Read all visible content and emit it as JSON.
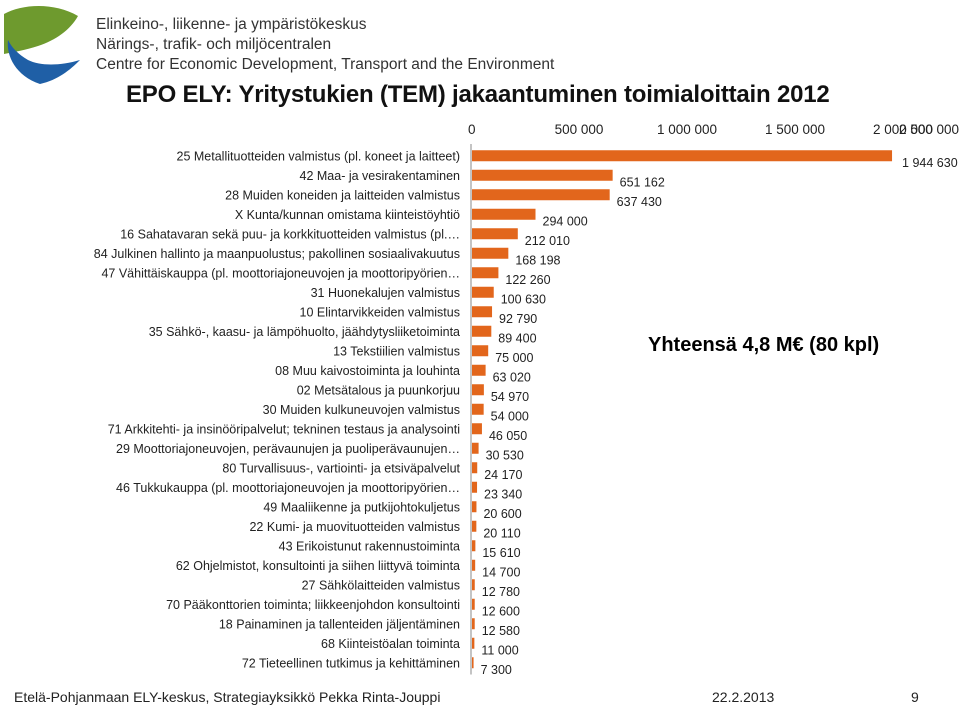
{
  "header": {
    "org_lines": [
      "Elinkeino-, liikenne- ja ympäristökeskus",
      "Närings-, trafik- och miljöcentralen",
      "Centre for Economic Development, Transport and the Environment"
    ],
    "title": "EPO ELY: Yritystukien (TEM) jakaantuminen toimialoittain 2012"
  },
  "colors": {
    "bar": "#E2661C",
    "logo_green": "#6E9A2E",
    "logo_blue": "#1F5FA6",
    "axis": "#888888"
  },
  "chart_data": {
    "type": "bar",
    "orientation": "horizontal",
    "title": "EPO ELY: Yritystukien (TEM) jakaantuminen toimialoittain 2012",
    "xlim": [
      0,
      2500000
    ],
    "x_ticks": [
      0,
      500000,
      1000000,
      1500000,
      2000000,
      2500000
    ],
    "x_tick_labels": [
      "0",
      "500 000",
      "1 000 000",
      "1 500 000",
      "2 000 000",
      "2 500 000"
    ],
    "categories": [
      "25 Metallituotteiden valmistus (pl. koneet ja laitteet)",
      "42 Maa- ja vesirakentaminen",
      "28 Muiden koneiden ja laitteiden valmistus",
      "X Kunta/kunnan omistama kiinteistöyhtiö",
      "16 Sahatavaran sekä puu- ja korkkituotteiden valmistus (pl.…",
      "84 Julkinen hallinto ja maanpuolustus; pakollinen sosiaalivakuutus",
      "47 Vähittäiskauppa (pl. moottoriajoneuvojen ja moottoripyörien…",
      "31 Huonekalujen valmistus",
      "10 Elintarvikkeiden valmistus",
      "35 Sähkö-, kaasu- ja lämpöhuolto, jäähdytysliiketoiminta",
      "13 Tekstiilien valmistus",
      "08 Muu kaivostoiminta ja louhinta",
      "02 Metsätalous ja puunkorjuu",
      "30 Muiden kulkuneuvojen valmistus",
      "71 Arkkitehti- ja insinööripalvelut; tekninen testaus ja analysointi",
      "29 Moottoriajoneuvojen, perävaunujen ja puoliperävaunujen…",
      "80 Turvallisuus-, vartiointi- ja etsiväpalvelut",
      "46 Tukkukauppa (pl. moottoriajoneuvojen ja moottoripyörien…",
      "49 Maaliikenne ja putkijohtokuljetus",
      "22 Kumi- ja muovituotteiden valmistus",
      "43 Erikoistunut rakennustoiminta",
      "62 Ohjelmistot, konsultointi ja siihen liittyvä toiminta",
      "27 Sähkölaitteiden valmistus",
      "70 Pääkonttorien toiminta; liikkeenjohdon konsultointi",
      "18 Painaminen ja tallenteiden jäljentäminen",
      "68 Kiinteistöalan toiminta",
      "72 Tieteellinen tutkimus ja kehittäminen"
    ],
    "values": [
      1944630,
      651162,
      637430,
      294000,
      212010,
      168198,
      122260,
      100630,
      92790,
      89400,
      75000,
      63020,
      54970,
      54000,
      46050,
      30530,
      24170,
      23340,
      20600,
      20110,
      15610,
      14700,
      12780,
      12600,
      12580,
      11000,
      7300
    ],
    "value_labels": [
      "1 944 630",
      "651 162",
      "637 430",
      "294 000",
      "212 010",
      "168 198",
      "122 260",
      "100 630",
      "92 790",
      "89 400",
      "75 000",
      "63 020",
      "54 970",
      "54 000",
      "46 050",
      "30 530",
      "24 170",
      "23 340",
      "20 600",
      "20 110",
      "15 610",
      "14 700",
      "12 780",
      "12 600",
      "12 580",
      "11 000",
      "7 300"
    ],
    "annotation": "Yhteensä 4,8 M€ (80 kpl)"
  },
  "footer": {
    "left": "Etelä-Pohjanmaan ELY-keskus, Strategiayksikkö Pekka Rinta-Jouppi",
    "date": "22.2.2013",
    "page": "9"
  }
}
